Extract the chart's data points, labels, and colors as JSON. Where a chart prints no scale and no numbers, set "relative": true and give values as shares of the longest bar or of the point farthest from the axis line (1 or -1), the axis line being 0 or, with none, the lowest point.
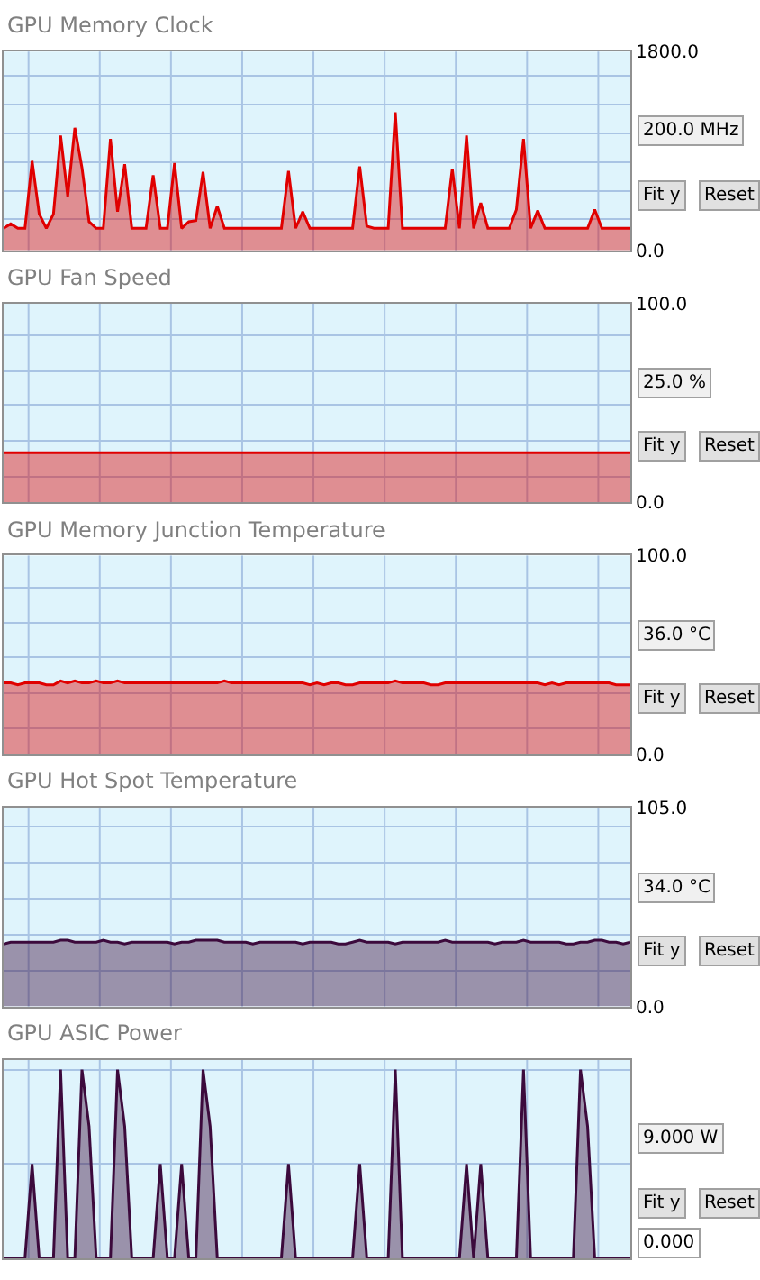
{
  "chart_data": [
    {
      "type": "area",
      "title": "GPU Memory Clock",
      "categories": [
        null,
        null,
        null,
        null,
        null,
        null,
        null,
        null,
        null,
        null,
        null,
        null,
        null,
        null,
        null,
        null,
        null,
        null,
        null,
        null,
        null,
        null,
        null,
        null,
        null,
        null,
        null,
        null,
        null,
        null,
        null,
        null,
        null,
        null,
        null,
        null,
        null,
        null,
        null,
        null,
        null,
        null,
        null,
        null,
        null,
        null,
        null,
        null,
        null,
        null,
        null,
        null,
        null,
        null,
        null,
        null,
        null,
        null,
        null,
        null,
        null,
        null,
        null,
        null,
        null,
        null,
        null,
        null,
        null,
        null,
        null,
        null,
        null,
        null,
        null,
        null,
        null,
        null,
        null,
        null,
        null,
        null,
        null,
        null,
        null,
        null,
        null,
        null,
        null
      ],
      "ylim": [
        0,
        1800
      ],
      "yticks": [
        {
          "value": 0,
          "label": "0.0"
        },
        {
          "value": 280,
          "label": null
        },
        {
          "value": 540,
          "label": null
        },
        {
          "value": 800,
          "label": null
        },
        {
          "value": 1060,
          "label": null
        },
        {
          "value": 1320,
          "label": null
        },
        {
          "value": 1580,
          "label": null
        },
        {
          "value": 1800,
          "label": "1800.0"
        }
      ],
      "tick_labels": "y",
      "grid": true,
      "annotations": [
        "200.0 MHz",
        "Fit y",
        "Reset"
      ],
      "series": [
        {
          "color": "#e00000",
          "values": [
            200,
            240,
            200,
            200,
            810,
            330,
            200,
            330,
            1040,
            490,
            1110,
            750,
            260,
            200,
            200,
            1010,
            350,
            780,
            200,
            200,
            200,
            680,
            200,
            200,
            790,
            200,
            260,
            270,
            710,
            200,
            400,
            200,
            200,
            200,
            200,
            200,
            200,
            200,
            200,
            200,
            720,
            200,
            350,
            200,
            200,
            200,
            200,
            200,
            200,
            200,
            760,
            220,
            200,
            200,
            200,
            1250,
            200,
            200,
            200,
            200,
            200,
            200,
            200,
            740,
            200,
            1040,
            200,
            430,
            200,
            200,
            200,
            200,
            370,
            1010,
            200,
            360,
            200,
            200,
            200,
            200,
            200,
            200,
            200,
            370,
            200,
            200,
            200,
            200,
            200
          ]
        }
      ]
    },
    {
      "type": "area",
      "title": "GPU Fan Speed",
      "categories": [
        null,
        null,
        null,
        null,
        null,
        null,
        null,
        null,
        null,
        null,
        null,
        null,
        null,
        null,
        null,
        null,
        null,
        null,
        null,
        null,
        null,
        null,
        null,
        null,
        null,
        null,
        null,
        null,
        null,
        null,
        null,
        null,
        null,
        null,
        null,
        null,
        null,
        null,
        null,
        null,
        null,
        null,
        null,
        null,
        null,
        null,
        null,
        null,
        null,
        null,
        null,
        null,
        null,
        null,
        null,
        null,
        null,
        null,
        null,
        null,
        null,
        null,
        null,
        null,
        null,
        null,
        null,
        null,
        null,
        null,
        null,
        null,
        null,
        null,
        null,
        null,
        null,
        null,
        null,
        null,
        null,
        null,
        null,
        null,
        null,
        null,
        null,
        null,
        null
      ],
      "ylim": [
        0,
        100
      ],
      "yticks": [
        {
          "value": 0,
          "label": "0.0"
        },
        {
          "value": 13,
          "label": null
        },
        {
          "value": 31,
          "label": null
        },
        {
          "value": 49,
          "label": null
        },
        {
          "value": 66,
          "label": null
        },
        {
          "value": 84,
          "label": null
        },
        {
          "value": 100,
          "label": "100.0"
        }
      ],
      "tick_labels": "y",
      "grid": true,
      "annotations": [
        "25.0 %",
        "Fit y",
        "Reset"
      ],
      "series": [
        {
          "color": "#e00000",
          "values": [
            25,
            25,
            25,
            25,
            25,
            25,
            25,
            25,
            25,
            25,
            25,
            25,
            25,
            25,
            25,
            25,
            25,
            25,
            25,
            25,
            25,
            25,
            25,
            25,
            25,
            25,
            25,
            25,
            25,
            25,
            25,
            25,
            25,
            25,
            25,
            25,
            25,
            25,
            25,
            25,
            25,
            25,
            25,
            25,
            25,
            25,
            25,
            25,
            25,
            25,
            25,
            25,
            25,
            25,
            25,
            25,
            25,
            25,
            25,
            25,
            25,
            25,
            25,
            25,
            25,
            25,
            25,
            25,
            25,
            25,
            25,
            25,
            25,
            25,
            25,
            25,
            25,
            25,
            25,
            25,
            25,
            25,
            25,
            25,
            25,
            25,
            25,
            25,
            25
          ]
        }
      ]
    },
    {
      "type": "area",
      "title": "GPU Memory Junction Temperature",
      "categories": [
        null,
        null,
        null,
        null,
        null,
        null,
        null,
        null,
        null,
        null,
        null,
        null,
        null,
        null,
        null,
        null,
        null,
        null,
        null,
        null,
        null,
        null,
        null,
        null,
        null,
        null,
        null,
        null,
        null,
        null,
        null,
        null,
        null,
        null,
        null,
        null,
        null,
        null,
        null,
        null,
        null,
        null,
        null,
        null,
        null,
        null,
        null,
        null,
        null,
        null,
        null,
        null,
        null,
        null,
        null,
        null,
        null,
        null,
        null,
        null,
        null,
        null,
        null,
        null,
        null,
        null,
        null,
        null,
        null,
        null,
        null,
        null,
        null,
        null,
        null,
        null,
        null,
        null,
        null,
        null,
        null,
        null,
        null,
        null,
        null,
        null,
        null,
        null,
        null
      ],
      "ylim": [
        0,
        100
      ],
      "yticks": [
        {
          "value": 0,
          "label": "0.0"
        },
        {
          "value": 13,
          "label": null
        },
        {
          "value": 31,
          "label": null
        },
        {
          "value": 49,
          "label": null
        },
        {
          "value": 66,
          "label": null
        },
        {
          "value": 84,
          "label": null
        },
        {
          "value": 100,
          "label": "100.0"
        }
      ],
      "tick_labels": "y",
      "grid": true,
      "annotations": [
        "36.0 °C",
        "Fit y",
        "Reset"
      ],
      "series": [
        {
          "color": "#e00000",
          "values": [
            36,
            36,
            35,
            36,
            36,
            36,
            35,
            35,
            37,
            36,
            37,
            36,
            36,
            37,
            36,
            36,
            37,
            36,
            36,
            36,
            36,
            36,
            36,
            36,
            36,
            36,
            36,
            36,
            36,
            36,
            36,
            37,
            36,
            36,
            36,
            36,
            36,
            36,
            36,
            36,
            36,
            36,
            36,
            35,
            36,
            35,
            36,
            36,
            35,
            35,
            36,
            36,
            36,
            36,
            36,
            37,
            36,
            36,
            36,
            36,
            35,
            35,
            36,
            36,
            36,
            36,
            36,
            36,
            36,
            36,
            36,
            36,
            36,
            36,
            36,
            36,
            35,
            36,
            35,
            36,
            36,
            36,
            36,
            36,
            36,
            36,
            35,
            35,
            35
          ]
        }
      ]
    },
    {
      "type": "area",
      "title": "GPU Hot Spot Temperature",
      "categories": [
        null,
        null,
        null,
        null,
        null,
        null,
        null,
        null,
        null,
        null,
        null,
        null,
        null,
        null,
        null,
        null,
        null,
        null,
        null,
        null,
        null,
        null,
        null,
        null,
        null,
        null,
        null,
        null,
        null,
        null,
        null,
        null,
        null,
        null,
        null,
        null,
        null,
        null,
        null,
        null,
        null,
        null,
        null,
        null,
        null,
        null,
        null,
        null,
        null,
        null,
        null,
        null,
        null,
        null,
        null,
        null,
        null,
        null,
        null,
        null,
        null,
        null,
        null,
        null,
        null,
        null,
        null,
        null,
        null,
        null,
        null,
        null,
        null,
        null,
        null,
        null,
        null,
        null,
        null,
        null,
        null,
        null,
        null,
        null,
        null,
        null,
        null,
        null,
        null
      ],
      "ylim": [
        0,
        105
      ],
      "yticks": [
        {
          "value": 0,
          "label": "0.0"
        },
        {
          "value": 19,
          "label": null
        },
        {
          "value": 38,
          "label": null
        },
        {
          "value": 57,
          "label": null
        },
        {
          "value": 76,
          "label": null
        },
        {
          "value": 95,
          "label": null
        },
        {
          "value": 105,
          "label": "105.0"
        }
      ],
      "tick_labels": "y",
      "grid": true,
      "annotations": [
        "34.0 °C",
        "Fit y",
        "Reset"
      ],
      "series": [
        {
          "color": "#3c0a3c",
          "values": [
            33,
            34,
            34,
            34,
            34,
            34,
            34,
            34,
            35,
            35,
            34,
            34,
            34,
            34,
            35,
            34,
            34,
            33,
            34,
            34,
            34,
            34,
            34,
            34,
            33,
            34,
            34,
            35,
            35,
            35,
            35,
            34,
            34,
            34,
            34,
            33,
            34,
            34,
            34,
            34,
            34,
            34,
            33,
            34,
            34,
            34,
            34,
            33,
            33,
            34,
            35,
            34,
            34,
            34,
            34,
            33,
            34,
            34,
            34,
            34,
            34,
            34,
            35,
            34,
            34,
            34,
            34,
            34,
            34,
            33,
            34,
            34,
            34,
            35,
            34,
            34,
            34,
            34,
            34,
            33,
            33,
            34,
            34,
            35,
            35,
            34,
            34,
            33,
            34
          ]
        }
      ]
    },
    {
      "type": "area",
      "title": "GPU ASIC Power",
      "categories": [
        null,
        null,
        null,
        null,
        null,
        null,
        null,
        null,
        null,
        null,
        null,
        null,
        null,
        null,
        null,
        null,
        null,
        null,
        null,
        null,
        null,
        null,
        null,
        null,
        null,
        null,
        null,
        null,
        null,
        null,
        null,
        null,
        null,
        null,
        null,
        null,
        null,
        null,
        null,
        null,
        null,
        null,
        null,
        null,
        null,
        null,
        null,
        null,
        null,
        null,
        null,
        null,
        null,
        null,
        null,
        null,
        null,
        null,
        null,
        null,
        null,
        null,
        null,
        null,
        null,
        null,
        null,
        null,
        null,
        null,
        null,
        null,
        null,
        null,
        null,
        null,
        null,
        null,
        null,
        null,
        null,
        null,
        null,
        null,
        null,
        null,
        null,
        null,
        null
      ],
      "relative": true,
      "tick_labels": false,
      "grid": true,
      "annotations": [
        "9.000 W",
        "Fit y",
        "Reset",
        "0.000"
      ],
      "series": [
        {
          "color": "#3c0a3c",
          "values": [
            0,
            0,
            0,
            0,
            0.5,
            0,
            0,
            0,
            1,
            0,
            0,
            1,
            0.7,
            0,
            0,
            0,
            1,
            0.7,
            0,
            0,
            0,
            0,
            0.5,
            0,
            0,
            0.5,
            0,
            0,
            1,
            0.7,
            0,
            0,
            0,
            0,
            0,
            0,
            0,
            0,
            0,
            0,
            0.5,
            0,
            0,
            0,
            0,
            0,
            0,
            0,
            0,
            0,
            0.5,
            0,
            0,
            0,
            0,
            1,
            0,
            0,
            0,
            0,
            0,
            0,
            0,
            0,
            0,
            0.5,
            0,
            0.5,
            0,
            0,
            0,
            0,
            0,
            1,
            0,
            0,
            0,
            0,
            0,
            0,
            0,
            1,
            0.7,
            0,
            0,
            0,
            0,
            0,
            0
          ]
        }
      ]
    }
  ]
}
